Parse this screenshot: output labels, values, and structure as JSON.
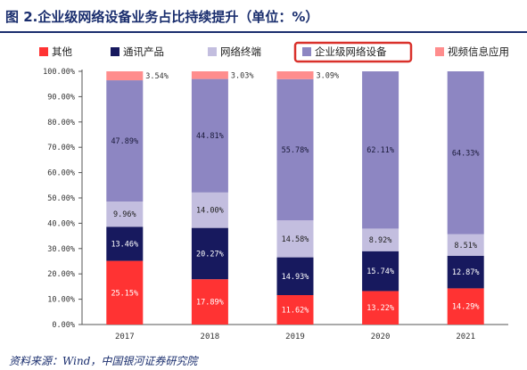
{
  "page": {
    "title": "图 2.企业级网络设备业务占比持续提升（单位：%）",
    "source": "资料来源：Wind，中国银河证券研究院"
  },
  "chart_data": {
    "type": "bar",
    "stacked": true,
    "percent": true,
    "categories": [
      "2017",
      "2018",
      "2019",
      "2020",
      "2021"
    ],
    "ylim": [
      0,
      100
    ],
    "yticks": [
      "0.00%",
      "10.00%",
      "20.00%",
      "30.00%",
      "40.00%",
      "50.00%",
      "60.00%",
      "70.00%",
      "80.00%",
      "90.00%",
      "100.00%"
    ],
    "legend_position": "top",
    "highlighted_legend": "企业级网络设备",
    "highlight_color": "#d9312b",
    "series": [
      {
        "name": "其他",
        "color": "#ff3333",
        "values": [
          25.15,
          17.89,
          11.62,
          13.22,
          14.29
        ],
        "labels": [
          "25.15%",
          "17.89%",
          "11.62%",
          "13.22%",
          "14.29%"
        ]
      },
      {
        "name": "通讯产品",
        "color": "#17195e",
        "values": [
          13.46,
          20.27,
          14.93,
          15.74,
          12.87
        ],
        "labels": [
          "13.46%",
          "20.27%",
          "14.93%",
          "15.74%",
          "12.87%"
        ]
      },
      {
        "name": "网络终端",
        "color": "#c3bedf",
        "values": [
          9.96,
          14.0,
          14.58,
          8.92,
          8.51
        ],
        "labels": [
          "9.96%",
          "14.00%",
          "14.58%",
          "8.92%",
          "8.51%"
        ]
      },
      {
        "name": "企业级网络设备",
        "color": "#8d86c2",
        "values": [
          47.89,
          44.81,
          55.78,
          62.11,
          64.33
        ],
        "labels": [
          "47.89%",
          "44.81%",
          "55.78%",
          "62.11%",
          "64.33%"
        ]
      },
      {
        "name": "视频信息应用",
        "color": "#ff8d8d",
        "values": [
          3.54,
          3.03,
          3.09,
          0,
          0
        ],
        "labels": [
          "3.54%",
          "3.03%",
          "3.09%",
          "",
          ""
        ]
      }
    ]
  }
}
